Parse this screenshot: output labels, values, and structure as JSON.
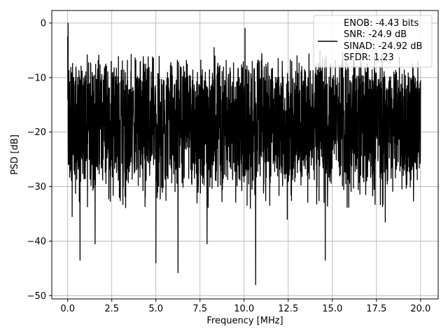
{
  "chart_data": {
    "type": "line",
    "title": "",
    "xlabel": "Frequency [MHz]",
    "ylabel": "PSD [dB]",
    "xlim": [
      -0.9,
      21.0
    ],
    "ylim": [
      -50.6,
      2.3
    ],
    "xticks": [
      0.0,
      2.5,
      5.0,
      7.5,
      10.0,
      12.5,
      15.0,
      17.5,
      20.0
    ],
    "xtick_labels": [
      "0.0",
      "2.5",
      "5.0",
      "7.5",
      "10.0",
      "12.5",
      "15.0",
      "17.5",
      "20.0"
    ],
    "yticks": [
      0,
      -10,
      -20,
      -30,
      -40,
      -50
    ],
    "ytick_labels": [
      "0",
      "−10",
      "−20",
      "−30",
      "−40",
      "−50"
    ],
    "grid": true,
    "legend_position": "top-right",
    "line_color": "#000000",
    "series": [
      {
        "x_range": [
          0,
          20
        ],
        "noise_floor_db": -18,
        "peak_max_db": 0,
        "dip_min_db": -48,
        "dips": [
          {
            "x": 0.25,
            "y": -35.5
          },
          {
            "x": 0.7,
            "y": -43.5
          },
          {
            "x": 1.55,
            "y": -40.5
          },
          {
            "x": 5.0,
            "y": -44.0
          },
          {
            "x": 6.25,
            "y": -45.8
          },
          {
            "x": 7.9,
            "y": -40.5
          },
          {
            "x": 10.65,
            "y": -48.0
          },
          {
            "x": 14.6,
            "y": -43.5
          },
          {
            "x": 12.45,
            "y": -36.0
          },
          {
            "x": 18.0,
            "y": -36.5
          }
        ],
        "peaks": [
          {
            "x": 0.02,
            "y": 0.0
          },
          {
            "x": 10.05,
            "y": -1.0
          },
          {
            "x": 8.3,
            "y": -4.5
          },
          {
            "x": 14.3,
            "y": -5.0
          },
          {
            "x": 16.6,
            "y": -5.5
          },
          {
            "x": 13.0,
            "y": -6.0
          }
        ]
      }
    ],
    "legend_lines": [
      "ENOB: -4.43 bits",
      "SNR: -24.9 dB",
      "SINAD: -24.92 dB",
      "SFDR: 1.23"
    ]
  }
}
